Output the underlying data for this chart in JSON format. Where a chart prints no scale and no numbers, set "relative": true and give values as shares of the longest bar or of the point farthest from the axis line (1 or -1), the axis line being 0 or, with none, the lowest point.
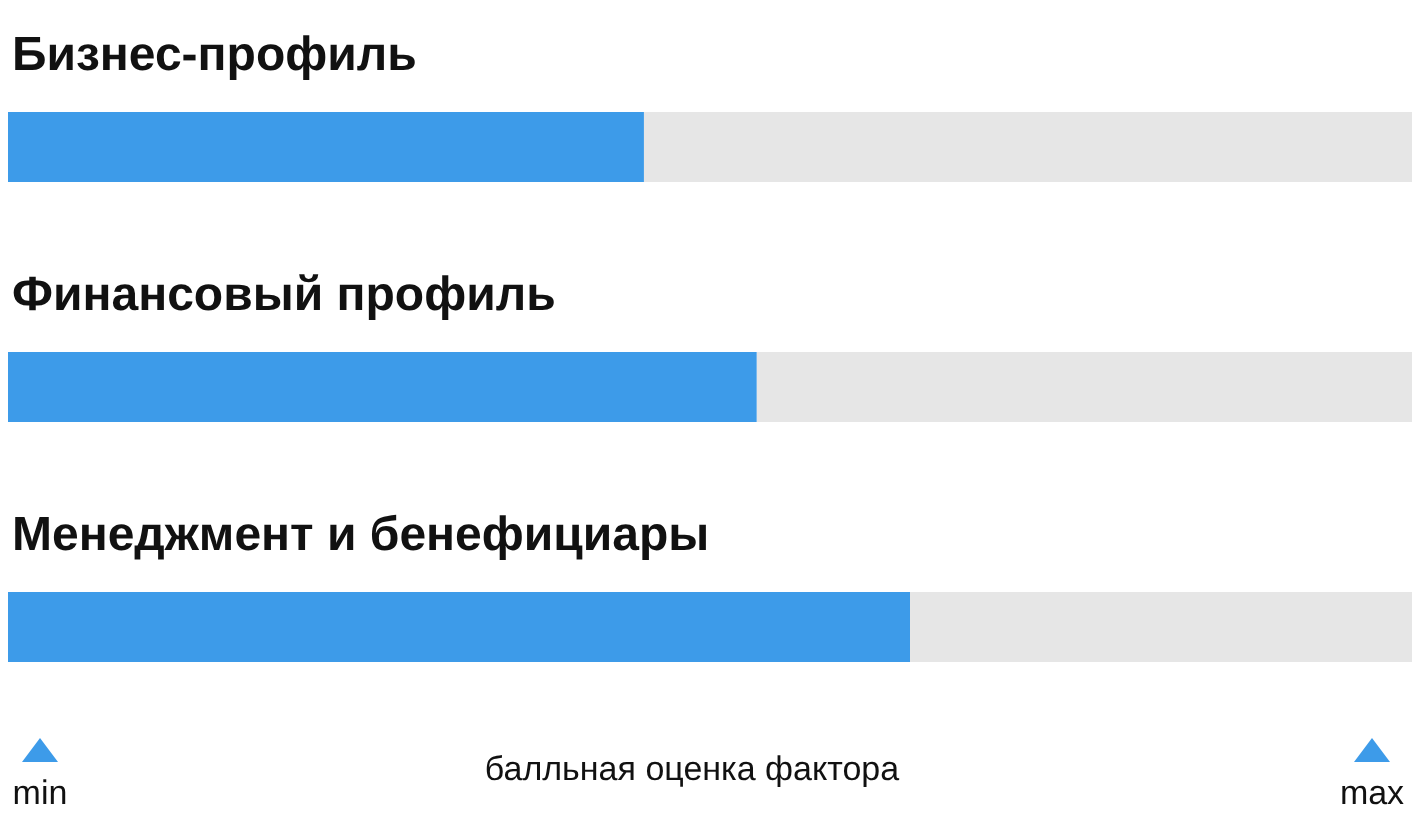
{
  "chart_data": {
    "type": "bar",
    "orientation": "horizontal",
    "relative": true,
    "categories": [
      "Бизнес-профиль",
      "Финансовый профиль",
      "Менеджмент и бенефициары"
    ],
    "values": [
      0.705,
      0.83,
      1
    ],
    "color": "#3d9be9",
    "xlabel": "балльная оценка фактора",
    "annotations": [
      "min",
      "max"
    ]
  }
}
